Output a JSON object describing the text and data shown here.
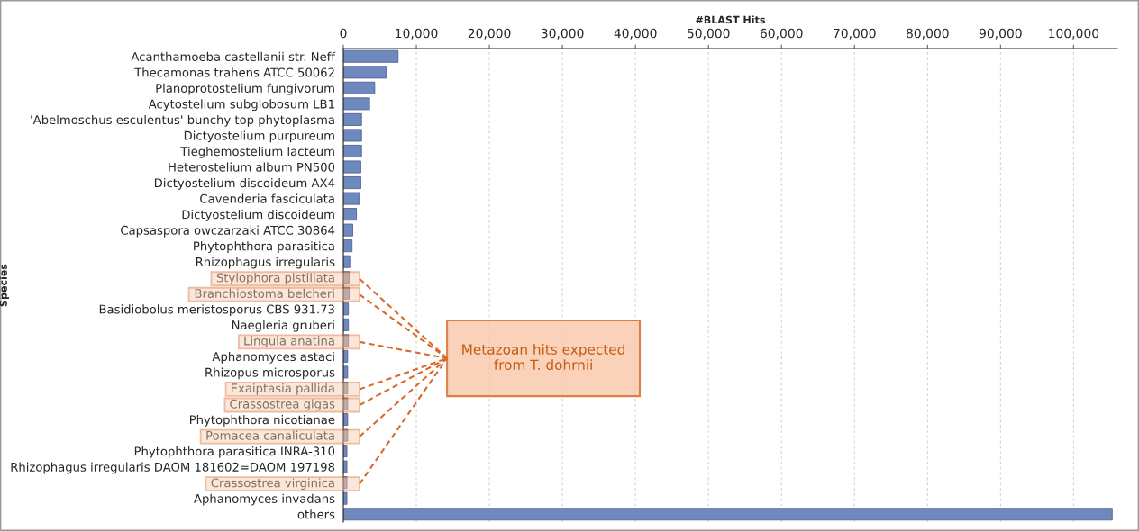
{
  "chart_data": {
    "type": "bar",
    "orientation": "horizontal",
    "xlabel": "#BLAST Hits",
    "ylabel": "Species",
    "categories": [
      "Acanthamoeba castellanii str. Neff",
      "Thecamonas trahens ATCC 50062",
      "Planoprotostelium fungivorum",
      "Acytostelium subglobosum LB1",
      "'Abelmoschus esculentus' bunchy top phytoplasma",
      "Dictyostelium purpureum",
      "Tieghemostelium lacteum",
      "Heterostelium album PN500",
      "Dictyostelium discoideum AX4",
      "Cavenderia fasciculata",
      "Dictyostelium discoideum",
      "Capsaspora owczarzaki ATCC 30864",
      "Phytophthora parasitica",
      "Rhizophagus irregularis",
      "Stylophora pistillata",
      "Branchiostoma belcheri",
      "Basidiobolus meristosporus CBS 931.73",
      "Naegleria gruberi",
      "Lingula anatina",
      "Aphanomyces astaci",
      "Rhizopus microsporus",
      "Exaiptasia pallida",
      "Crassostrea gigas",
      "Phytophthora nicotianae",
      "Pomacea canaliculata",
      "Phytophthora parasitica INRA-310",
      "Rhizophagus irregularis DAOM 181602=DAOM 197198",
      "Crassostrea virginica",
      "Aphanomyces invadans",
      "others"
    ],
    "values": [
      7500,
      5900,
      4300,
      3600,
      2500,
      2500,
      2500,
      2400,
      2400,
      2200,
      1800,
      1300,
      1200,
      900,
      800,
      800,
      700,
      700,
      700,
      600,
      600,
      600,
      600,
      600,
      600,
      500,
      500,
      500,
      500,
      105300
    ],
    "colors": [
      "#6f88bd",
      "#6f88bd",
      "#6f88bd",
      "#6f88bd",
      "#6f88bd",
      "#6f88bd",
      "#6f88bd",
      "#6f88bd",
      "#6f88bd",
      "#6f88bd",
      "#6f88bd",
      "#6f88bd",
      "#6f88bd",
      "#6f88bd",
      "#9b8a93",
      "#9b8a93",
      "#6f88bd",
      "#6f88bd",
      "#9b8a93",
      "#6f88bd",
      "#6f88bd",
      "#9b8a93",
      "#9b8a93",
      "#6f88bd",
      "#9b8a93",
      "#6f88bd",
      "#6f88bd",
      "#9b8a93",
      "#6f88bd",
      "#6f88bd"
    ],
    "xlim": [
      0,
      106000
    ],
    "xticks": [
      0,
      {
        "value": 10000,
        "label": "10,000"
      },
      {
        "value": 20000,
        "label": "20,000"
      },
      {
        "value": 30000,
        "label": "30,000"
      },
      {
        "value": 40000,
        "label": "40,000"
      },
      {
        "value": 50000,
        "label": "50,000"
      },
      {
        "value": 60000,
        "label": "60,000"
      },
      {
        "value": 70000,
        "label": "70,000"
      },
      {
        "value": 80000,
        "label": "80,000"
      },
      {
        "value": 90000,
        "label": "90,000"
      },
      {
        "value": 100000,
        "label": "100,000"
      }
    ],
    "grid": "x",
    "legend": false,
    "annotations": [
      "Metazoan hits expected from T. dohrnii"
    ]
  }
}
